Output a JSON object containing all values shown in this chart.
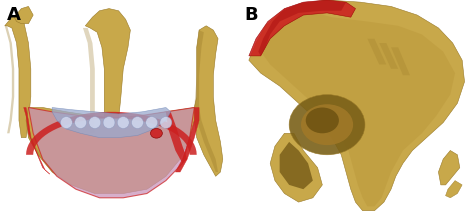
{
  "figure_width": 4.74,
  "figure_height": 2.15,
  "dpi": 100,
  "background_color": "#ffffff",
  "label_A": "A",
  "label_B": "B",
  "label_fontsize": 13,
  "label_fontweight": "bold",
  "label_color": "#000000",
  "bone_color": "#C8A84A",
  "bone_dark": "#9A7A28",
  "bone_mid": "#B89438",
  "red_color": "#CC2020",
  "pink_color": "#C890B8",
  "blue_color": "#9AAACE"
}
